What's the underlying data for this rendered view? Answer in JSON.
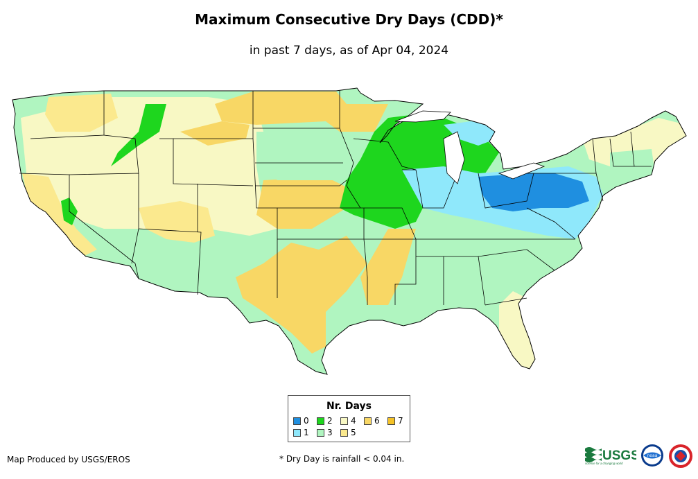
{
  "title": "Maximum Consecutive Dry Days (CDD)*",
  "subtitle": "in past 7 days, as of Apr 04, 2024",
  "legend": {
    "title": "Nr. Days",
    "items": [
      {
        "label": "0",
        "color": "#1f8fe0"
      },
      {
        "label": "1",
        "color": "#8fe8fb"
      },
      {
        "label": "2",
        "color": "#1ed61e"
      },
      {
        "label": "3",
        "color": "#b0f5c0"
      },
      {
        "label": "4",
        "color": "#f8f8c4"
      },
      {
        "label": "5",
        "color": "#fbe98e"
      },
      {
        "label": "6",
        "color": "#f8d765"
      },
      {
        "label": "7",
        "color": "#f4c227"
      }
    ]
  },
  "footer": {
    "credit": "Map Produced by USGS/EROS",
    "note": "* Dry Day is rainfall < 0.04 in."
  },
  "logos": {
    "usgs_text": "USGS",
    "usgs_tagline": "science for a changing world",
    "noaa_text": "noaa"
  }
}
